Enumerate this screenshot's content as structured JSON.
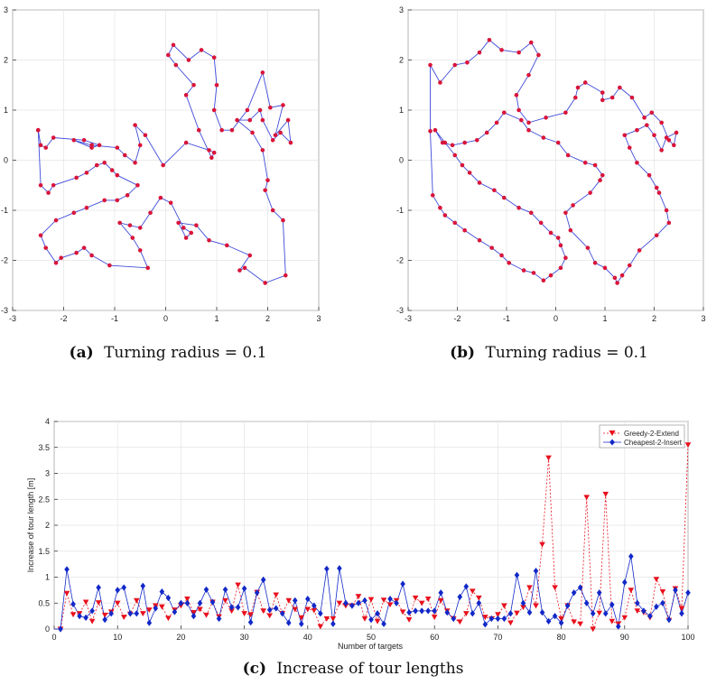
{
  "chart_data": [
    {
      "type": "line",
      "panel": "a",
      "caption_key": "(a)",
      "caption_text": "Turning radius = 0.1",
      "xlim": [
        -3,
        3
      ],
      "ylim": [
        -3,
        3
      ],
      "xticks": [
        -3,
        -2,
        -1,
        0,
        1,
        2,
        3
      ],
      "yticks": [
        -3,
        -2,
        -1,
        0,
        1,
        2,
        3
      ],
      "grid": true,
      "colors": {
        "tour": "#3f4bd8",
        "targets": "#d9143a"
      },
      "series": [
        {
          "x": [
            -2.5,
            -2.45,
            -2.35,
            -2.2,
            -1.6,
            -1.3,
            -1.45,
            -1.8,
            -1.45,
            -0.95,
            -0.8,
            -0.6,
            -0.5,
            -0.6,
            -0.4,
            -0.05,
            0.4,
            0.85,
            0.95,
            0.9,
            0.65,
            0.4,
            0.55,
            0.2,
            0.05,
            0.15,
            0.45,
            0.7,
            0.95,
            1.0,
            0.95,
            1.1,
            1.3,
            1.6,
            1.9,
            2.05,
            2.3,
            2.15,
            2.4,
            2.45,
            2.25,
            2.1,
            1.9,
            1.85,
            1.65,
            1.4,
            1.7,
            1.9,
            2.0,
            1.95,
            2.1,
            2.3,
            2.35,
            1.95,
            1.55,
            1.45,
            1.65,
            1.2,
            0.85,
            0.6,
            0.25,
            0.4,
            0.5,
            0.35,
            0.1,
            -0.1,
            -0.3,
            -0.5,
            -0.7,
            -0.9,
            -0.65,
            -0.5,
            -0.35,
            -1.1,
            -1.45,
            -1.6,
            -1.75,
            -2.05,
            -2.15,
            -2.35,
            -2.45,
            -2.15,
            -1.8,
            -1.55,
            -1.2,
            -0.95,
            -0.75,
            -0.55,
            -0.95,
            -1.05,
            -1.2,
            -1.35,
            -1.55,
            -1.75,
            -2.2,
            -2.3,
            -2.45,
            -2.5
          ],
          "y": [
            0.6,
            0.3,
            0.25,
            0.45,
            0.4,
            0.3,
            0.25,
            0.4,
            0.3,
            0.25,
            0.1,
            -0.05,
            0.3,
            0.7,
            0.5,
            -0.1,
            0.35,
            0.2,
            0.15,
            0.05,
            0.6,
            1.3,
            1.5,
            1.9,
            2.1,
            2.3,
            2.0,
            2.2,
            2.05,
            1.5,
            1.0,
            0.6,
            0.6,
            1.0,
            1.75,
            1.05,
            1.1,
            0.5,
            0.8,
            0.35,
            0.55,
            0.4,
            0.8,
            1.0,
            0.8,
            0.8,
            0.55,
            0.2,
            -0.4,
            -0.6,
            -1.0,
            -1.2,
            -2.3,
            -2.45,
            -2.15,
            -2.2,
            -1.9,
            -1.7,
            -1.6,
            -1.3,
            -1.25,
            -1.55,
            -1.45,
            -1.35,
            -0.85,
            -0.75,
            -1.05,
            -1.35,
            -1.3,
            -1.25,
            -1.55,
            -1.8,
            -2.15,
            -2.1,
            -1.9,
            -1.75,
            -1.85,
            -1.95,
            -2.05,
            -1.75,
            -1.5,
            -1.2,
            -1.05,
            -0.95,
            -0.8,
            -0.8,
            -0.7,
            -0.5,
            -0.3,
            -0.2,
            -0.05,
            -0.1,
            -0.25,
            -0.35,
            -0.5,
            -0.65,
            -0.5,
            0.6
          ]
        }
      ]
    },
    {
      "type": "line",
      "panel": "b",
      "caption_key": "(b)",
      "caption_text": "Turning radius = 0.1",
      "xlim": [
        -3,
        3
      ],
      "ylim": [
        -3,
        3
      ],
      "xticks": [
        -3,
        -2,
        -1,
        0,
        1,
        2,
        3
      ],
      "yticks": [
        -3,
        -2,
        -1,
        0,
        1,
        2,
        3
      ],
      "grid": true,
      "colors": {
        "tour": "#3f4bd8",
        "targets": "#d9143a"
      },
      "series": [
        {
          "x": [
            -2.55,
            -2.35,
            -2.05,
            -1.8,
            -1.55,
            -1.35,
            -1.1,
            -0.75,
            -0.5,
            -0.35,
            -0.55,
            -0.8,
            -0.75,
            -0.55,
            -0.2,
            0.2,
            0.4,
            0.45,
            0.6,
            0.95,
            0.95,
            1.15,
            1.3,
            1.55,
            1.8,
            1.95,
            2.15,
            2.3,
            2.4,
            2.45,
            2.25,
            2.15,
            2.0,
            1.85,
            1.65,
            1.4,
            1.5,
            1.65,
            1.9,
            2.05,
            2.1,
            2.25,
            2.3,
            2.05,
            1.7,
            1.5,
            1.35,
            1.25,
            1.2,
            1.0,
            0.8,
            0.65,
            0.3,
            0.2,
            0.35,
            0.7,
            0.9,
            0.95,
            0.8,
            0.6,
            0.25,
            0.05,
            -0.25,
            -0.55,
            -0.7,
            -1.05,
            -1.2,
            -1.4,
            -1.6,
            -1.85,
            -2.1,
            -2.3,
            -2.45,
            -2.25,
            -2.05,
            -1.9,
            -1.75,
            -1.55,
            -1.25,
            -1.05,
            -0.75,
            -0.5,
            -0.3,
            -0.1,
            0.05,
            0.1,
            0.2,
            0.1,
            -0.1,
            -0.25,
            -0.45,
            -0.65,
            -0.95,
            -1.1,
            -1.3,
            -1.55,
            -1.85,
            -2.05,
            -2.25,
            -2.35,
            -2.5,
            -2.55
          ],
          "y": [
            1.9,
            1.55,
            1.9,
            1.95,
            2.15,
            2.4,
            2.2,
            2.15,
            2.35,
            2.1,
            1.7,
            1.3,
            1.0,
            0.75,
            0.85,
            0.95,
            1.25,
            1.45,
            1.55,
            1.35,
            1.2,
            1.25,
            1.45,
            1.25,
            0.85,
            0.95,
            0.75,
            0.4,
            0.3,
            0.55,
            0.45,
            0.2,
            0.5,
            0.7,
            0.6,
            0.5,
            0.25,
            -0.05,
            -0.3,
            -0.55,
            -0.65,
            -1.0,
            -1.25,
            -1.5,
            -1.8,
            -2.1,
            -2.3,
            -2.45,
            -2.35,
            -2.15,
            -2.05,
            -1.75,
            -1.4,
            -1.05,
            -0.9,
            -0.65,
            -0.4,
            -0.3,
            -0.1,
            -0.05,
            0.1,
            0.35,
            0.45,
            0.6,
            0.8,
            0.95,
            0.75,
            0.55,
            0.4,
            0.35,
            0.3,
            0.35,
            0.6,
            0.35,
            0.1,
            -0.1,
            -0.25,
            -0.45,
            -0.6,
            -0.75,
            -0.95,
            -1.05,
            -1.25,
            -1.45,
            -1.55,
            -1.7,
            -1.95,
            -2.15,
            -2.3,
            -2.4,
            -2.25,
            -2.2,
            -2.05,
            -1.9,
            -1.75,
            -1.6,
            -1.4,
            -1.25,
            -1.1,
            -0.95,
            -0.7,
            0.58
          ]
        }
      ]
    },
    {
      "type": "line",
      "panel": "c",
      "caption_key": "(c)",
      "caption_text": "Increase of tour lengths",
      "xlabel": "Number of targets",
      "ylabel": "Increase of tour length [m]",
      "xlim": [
        0,
        100
      ],
      "ylim": [
        0,
        4
      ],
      "xticks": [
        0,
        10,
        20,
        30,
        40,
        50,
        60,
        70,
        80,
        90,
        100
      ],
      "yticks": [
        0,
        0.5,
        1,
        1.5,
        2,
        2.5,
        3,
        3.5,
        4
      ],
      "grid": true,
      "legend": "top-right",
      "series": [
        {
          "name": "Greedy-2-Extend",
          "color": "#e8101c",
          "marker": "triangle-down",
          "dash": "dotted",
          "values": [
            0,
            0.69,
            0.28,
            0.3,
            0.52,
            0.15,
            0.51,
            0.27,
            0.33,
            0.5,
            0.23,
            0.29,
            0.55,
            0.3,
            0.37,
            0.45,
            0.43,
            0.21,
            0.37,
            0.45,
            0.58,
            0.32,
            0.38,
            0.27,
            0.52,
            0.24,
            0.55,
            0.35,
            0.85,
            0.3,
            0.28,
            0.71,
            0.35,
            0.26,
            0.66,
            0.3,
            0.55,
            0.38,
            0.22,
            0.38,
            0.36,
            0.05,
            0.2,
            0.2,
            0.5,
            0.45,
            0.45,
            0.63,
            0.2,
            0.57,
            0.15,
            0.56,
            0.47,
            0.55,
            0.33,
            0.18,
            0.6,
            0.5,
            0.58,
            0.23,
            0.55,
            0.35,
            0.2,
            0.14,
            0.3,
            0.73,
            0.6,
            0.23,
            0.2,
            0.28,
            0.45,
            0.12,
            0.31,
            0.42,
            0.8,
            0.45,
            1.63,
            3.3,
            0.8,
            0.2,
            0.45,
            0.14,
            0.1,
            2.54,
            0.0,
            0.31,
            2.6,
            0.15,
            0.1,
            0.22,
            0.75,
            0.35,
            0.32,
            0.22,
            0.96,
            0.72,
            0.17,
            0.78,
            0.4,
            3.55
          ],
          "x": [
            1,
            2,
            3,
            4,
            5,
            6,
            7,
            8,
            9,
            10,
            11,
            12,
            13,
            14,
            15,
            16,
            17,
            18,
            19,
            20,
            21,
            22,
            23,
            24,
            25,
            26,
            27,
            28,
            29,
            30,
            31,
            32,
            33,
            34,
            35,
            36,
            37,
            38,
            39,
            40,
            41,
            42,
            43,
            44,
            45,
            46,
            47,
            48,
            49,
            50,
            51,
            52,
            53,
            54,
            55,
            56,
            57,
            58,
            59,
            60,
            61,
            62,
            63,
            64,
            65,
            66,
            67,
            68,
            69,
            70,
            71,
            72,
            73,
            74,
            75,
            76,
            77,
            78,
            79,
            80,
            81,
            82,
            83,
            84,
            85,
            86,
            87,
            88,
            89,
            90,
            91,
            92,
            93,
            94,
            95,
            96,
            97,
            98,
            99,
            100
          ]
        },
        {
          "name": "Cheapest-2-Insert",
          "color": "#1228c8",
          "marker": "diamond",
          "dash": "solid",
          "values": [
            0,
            1.15,
            0.48,
            0.25,
            0.22,
            0.35,
            0.8,
            0.18,
            0.3,
            0.75,
            0.8,
            0.3,
            0.3,
            0.83,
            0.12,
            0.4,
            0.72,
            0.6,
            0.33,
            0.5,
            0.5,
            0.25,
            0.5,
            0.76,
            0.52,
            0.2,
            0.76,
            0.42,
            0.42,
            0.78,
            0.13,
            0.7,
            0.95,
            0.37,
            0.4,
            0.3,
            0.12,
            0.55,
            0.1,
            0.58,
            0.45,
            0.3,
            1.16,
            0.1,
            1.17,
            0.5,
            0.45,
            0.5,
            0.55,
            0.18,
            0.3,
            0.1,
            0.58,
            0.5,
            0.87,
            0.32,
            0.35,
            0.35,
            0.35,
            0.35,
            0.7,
            0.32,
            0.2,
            0.62,
            0.82,
            0.3,
            0.5,
            0.09,
            0.2,
            0.2,
            0.2,
            0.3,
            1.04,
            0.5,
            0.32,
            1.12,
            0.32,
            0.15,
            0.25,
            0.12,
            0.45,
            0.7,
            0.8,
            0.5,
            0.3,
            0.7,
            0.3,
            0.47,
            0.05,
            0.9,
            1.4,
            0.5,
            0.35,
            0.25,
            0.43,
            0.5,
            0.18,
            0.75,
            0.3,
            0.7
          ],
          "x": [
            1,
            2,
            3,
            4,
            5,
            6,
            7,
            8,
            9,
            10,
            11,
            12,
            13,
            14,
            15,
            16,
            17,
            18,
            19,
            20,
            21,
            22,
            23,
            24,
            25,
            26,
            27,
            28,
            29,
            30,
            31,
            32,
            33,
            34,
            35,
            36,
            37,
            38,
            39,
            40,
            41,
            42,
            43,
            44,
            45,
            46,
            47,
            48,
            49,
            50,
            51,
            52,
            53,
            54,
            55,
            56,
            57,
            58,
            59,
            60,
            61,
            62,
            63,
            64,
            65,
            66,
            67,
            68,
            69,
            70,
            71,
            72,
            73,
            74,
            75,
            76,
            77,
            78,
            79,
            80,
            81,
            82,
            83,
            84,
            85,
            86,
            87,
            88,
            89,
            90,
            91,
            92,
            93,
            94,
            95,
            96,
            97,
            98,
            99,
            100
          ]
        }
      ]
    }
  ]
}
